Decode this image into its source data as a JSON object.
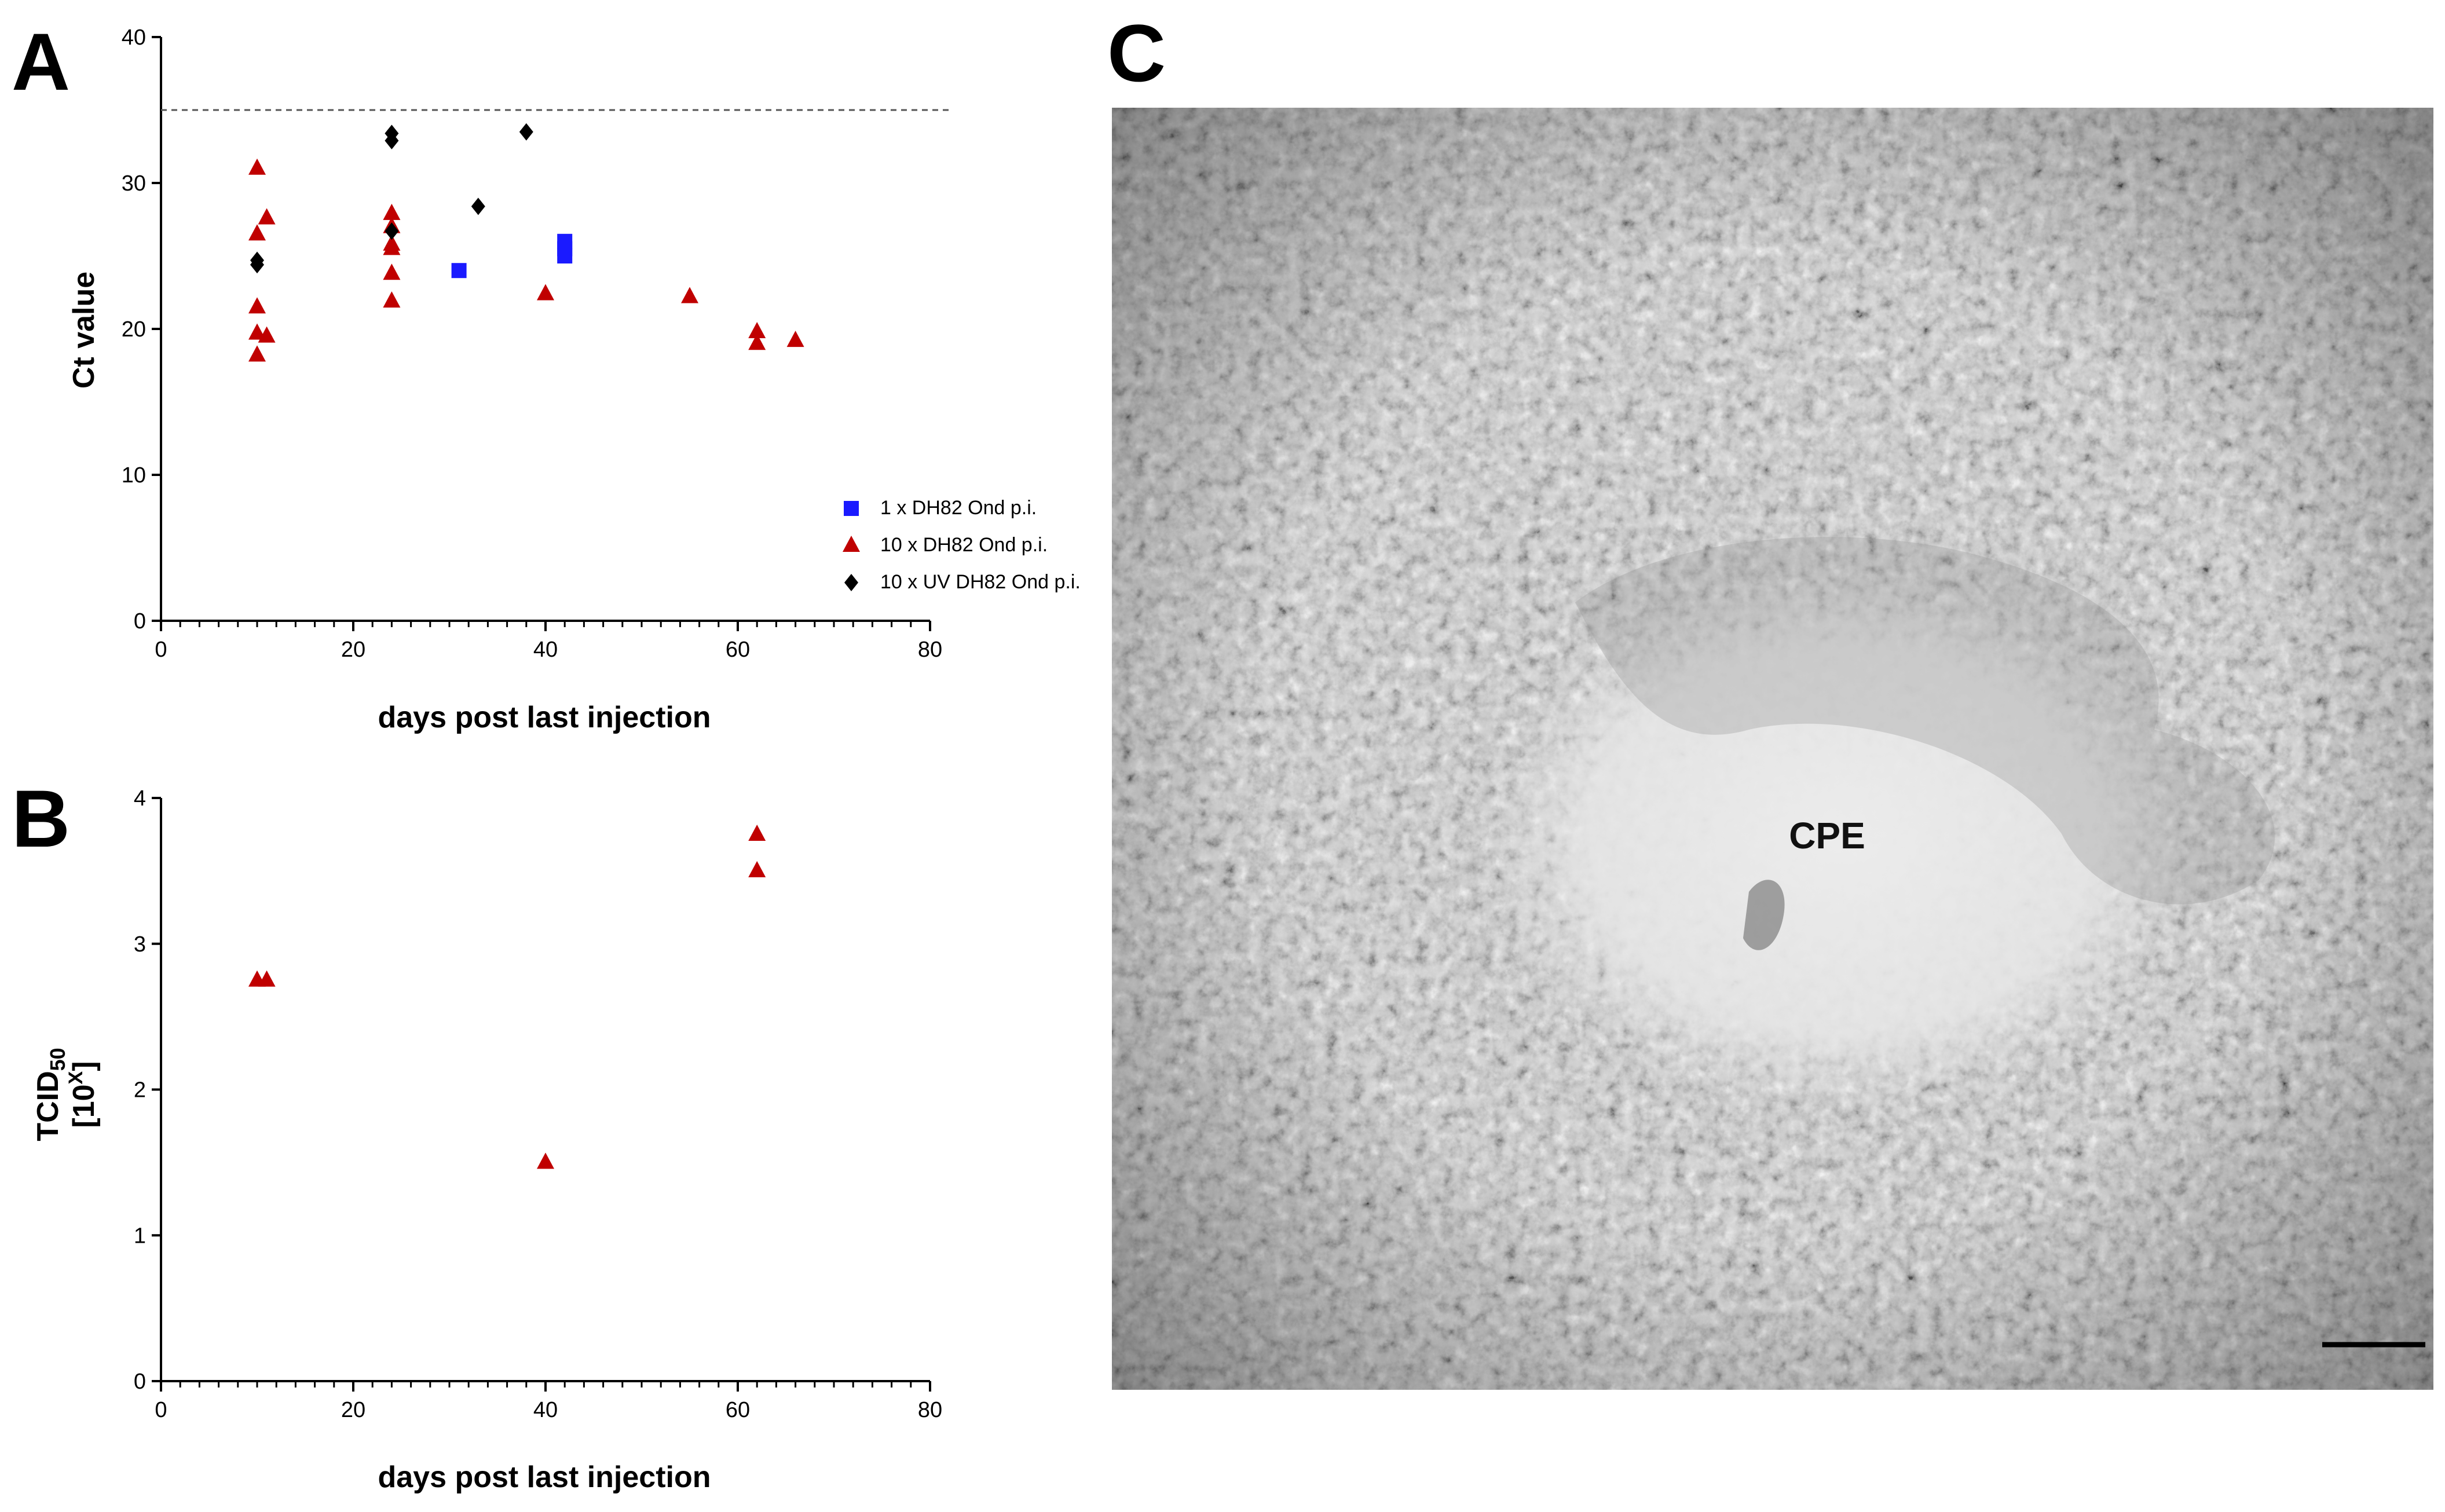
{
  "panels": {
    "a_letter": "A",
    "b_letter": "B",
    "c_letter": "C",
    "cpe_label": "CPE"
  },
  "chart_data": [
    {
      "panel": "A",
      "type": "scatter",
      "xlabel": "days post last injection",
      "ylabel": "Ct value",
      "xlim": [
        0,
        80
      ],
      "ylim": [
        0,
        40
      ],
      "xticks": [
        0,
        20,
        40,
        60,
        80
      ],
      "yticks": [
        0,
        10,
        20,
        30,
        40
      ],
      "reference_line": {
        "y": 35,
        "style": "dashed"
      },
      "legend_position": "right",
      "series": [
        {
          "name": "1 x DH82 Ond p.i.",
          "marker": "square",
          "color": "#1a1aff",
          "points": [
            [
              31,
              24.0
            ],
            [
              42,
              25.0
            ],
            [
              42,
              25.5
            ],
            [
              42,
              26.0
            ]
          ]
        },
        {
          "name": "10 x DH82 Ond p.i.",
          "marker": "triangle",
          "color": "#c00000",
          "points": [
            [
              10,
              31.0
            ],
            [
              11,
              27.6
            ],
            [
              10,
              26.5
            ],
            [
              10,
              21.5
            ],
            [
              10,
              19.7
            ],
            [
              11,
              19.5
            ],
            [
              10,
              18.2
            ],
            [
              24,
              27.9
            ],
            [
              24,
              27.0
            ],
            [
              24,
              25.8
            ],
            [
              24,
              25.5
            ],
            [
              24,
              23.8
            ],
            [
              24,
              21.9
            ],
            [
              40,
              22.4
            ],
            [
              55,
              22.2
            ],
            [
              62,
              19.8
            ],
            [
              62,
              19.0
            ],
            [
              66,
              19.2
            ]
          ]
        },
        {
          "name": "10 x UV DH82 Ond p.i.",
          "marker": "diamond",
          "color": "#000000",
          "points": [
            [
              10,
              24.7
            ],
            [
              10,
              24.4
            ],
            [
              24,
              33.4
            ],
            [
              24,
              32.9
            ],
            [
              24,
              26.7
            ],
            [
              33,
              28.4
            ],
            [
              38,
              33.5
            ]
          ]
        }
      ]
    },
    {
      "panel": "B",
      "type": "scatter",
      "xlabel": "days post last injection",
      "ylabel_main": "TCID",
      "ylabel_sub": "50",
      "ylabel_unit": "[10",
      "ylabel_unit_sup": "X",
      "ylabel_unit_close": "]",
      "xlim": [
        0,
        80
      ],
      "ylim": [
        0,
        4
      ],
      "xticks": [
        0,
        20,
        40,
        60,
        80
      ],
      "yticks": [
        0,
        1,
        2,
        3,
        4
      ],
      "series": [
        {
          "marker": "triangle",
          "color": "#c00000",
          "points": [
            [
              10,
              2.75
            ],
            [
              11,
              2.75
            ],
            [
              40,
              1.5
            ],
            [
              62,
              3.75
            ],
            [
              62,
              3.5
            ]
          ]
        }
      ]
    }
  ]
}
